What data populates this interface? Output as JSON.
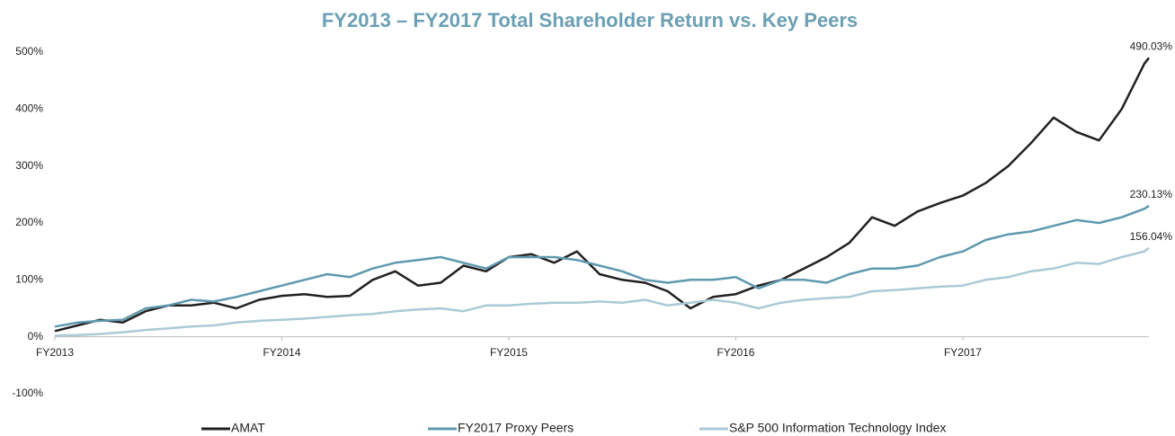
{
  "chart_data": {
    "type": "line",
    "title": "FY2013 – FY2017 Total Shareholder Return vs. Key Peers",
    "x": [
      2013.0,
      2013.1,
      2013.2,
      2013.3,
      2013.4,
      2013.5,
      2013.6,
      2013.7,
      2013.8,
      2013.9,
      2014.0,
      2014.1,
      2014.2,
      2014.3,
      2014.4,
      2014.5,
      2014.6,
      2014.7,
      2014.8,
      2014.9,
      2015.0,
      2015.1,
      2015.2,
      2015.3,
      2015.4,
      2015.5,
      2015.6,
      2015.7,
      2015.8,
      2015.9,
      2016.0,
      2016.1,
      2016.2,
      2016.3,
      2016.4,
      2016.5,
      2016.6,
      2016.7,
      2016.8,
      2016.9,
      2017.0,
      2017.1,
      2017.2,
      2017.3,
      2017.4,
      2017.5,
      2017.6,
      2017.7,
      2017.8,
      2017.82
    ],
    "xlim": [
      2013,
      2017.82
    ],
    "xticks": [
      {
        "value": 2013,
        "label": "FY2013"
      },
      {
        "value": 2014,
        "label": "FY2014"
      },
      {
        "value": 2015,
        "label": "FY2015"
      },
      {
        "value": 2016,
        "label": "FY2016"
      },
      {
        "value": 2017,
        "label": "FY2017"
      }
    ],
    "ylim": [
      -100,
      500
    ],
    "yticks": [
      {
        "value": 500,
        "label": "500%"
      },
      {
        "value": 400,
        "label": "400%"
      },
      {
        "value": 300,
        "label": "300%"
      },
      {
        "value": 200,
        "label": "200%"
      },
      {
        "value": 100,
        "label": "100%"
      },
      {
        "value": 0,
        "label": "0%"
      },
      {
        "value": -100,
        "label": "-100%"
      }
    ],
    "grid": false,
    "legend": "bottom",
    "series": [
      {
        "name": "AMAT",
        "color": "#231f20",
        "values": [
          10,
          20,
          30,
          25,
          45,
          55,
          55,
          60,
          50,
          65,
          72,
          75,
          70,
          72,
          100,
          115,
          90,
          95,
          125,
          115,
          140,
          145,
          130,
          150,
          110,
          100,
          95,
          80,
          50,
          70,
          75,
          90,
          100,
          120,
          140,
          165,
          210,
          195,
          220,
          235,
          248,
          270,
          300,
          340,
          385,
          360,
          345,
          400,
          480,
          490.03
        ]
      },
      {
        "name": "FY2017 Proxy Peers",
        "color": "#5e99ae",
        "values": [
          18,
          25,
          28,
          30,
          50,
          55,
          65,
          62,
          70,
          80,
          90,
          100,
          110,
          105,
          120,
          130,
          135,
          140,
          130,
          120,
          140,
          140,
          140,
          135,
          125,
          115,
          100,
          95,
          100,
          100,
          105,
          85,
          100,
          100,
          95,
          110,
          120,
          120,
          125,
          140,
          150,
          170,
          180,
          185,
          195,
          205,
          200,
          210,
          225,
          230.13
        ]
      },
      {
        "name": "S&P 500 Information Technology Index",
        "color": "#a9cad6",
        "values": [
          2,
          3,
          5,
          8,
          12,
          15,
          18,
          20,
          25,
          28,
          30,
          32,
          35,
          38,
          40,
          45,
          48,
          50,
          45,
          55,
          55,
          58,
          60,
          60,
          62,
          60,
          65,
          55,
          60,
          65,
          60,
          50,
          60,
          65,
          68,
          70,
          80,
          82,
          85,
          88,
          90,
          100,
          105,
          115,
          120,
          130,
          128,
          140,
          150,
          156.04
        ]
      }
    ],
    "annotations": [
      {
        "text": "490.03%",
        "x": 2017.82,
        "y": 490.03
      },
      {
        "text": "230.13%",
        "x": 2017.82,
        "y": 230.13
      },
      {
        "text": "156.04%",
        "x": 2017.82,
        "y": 156.04
      }
    ]
  }
}
